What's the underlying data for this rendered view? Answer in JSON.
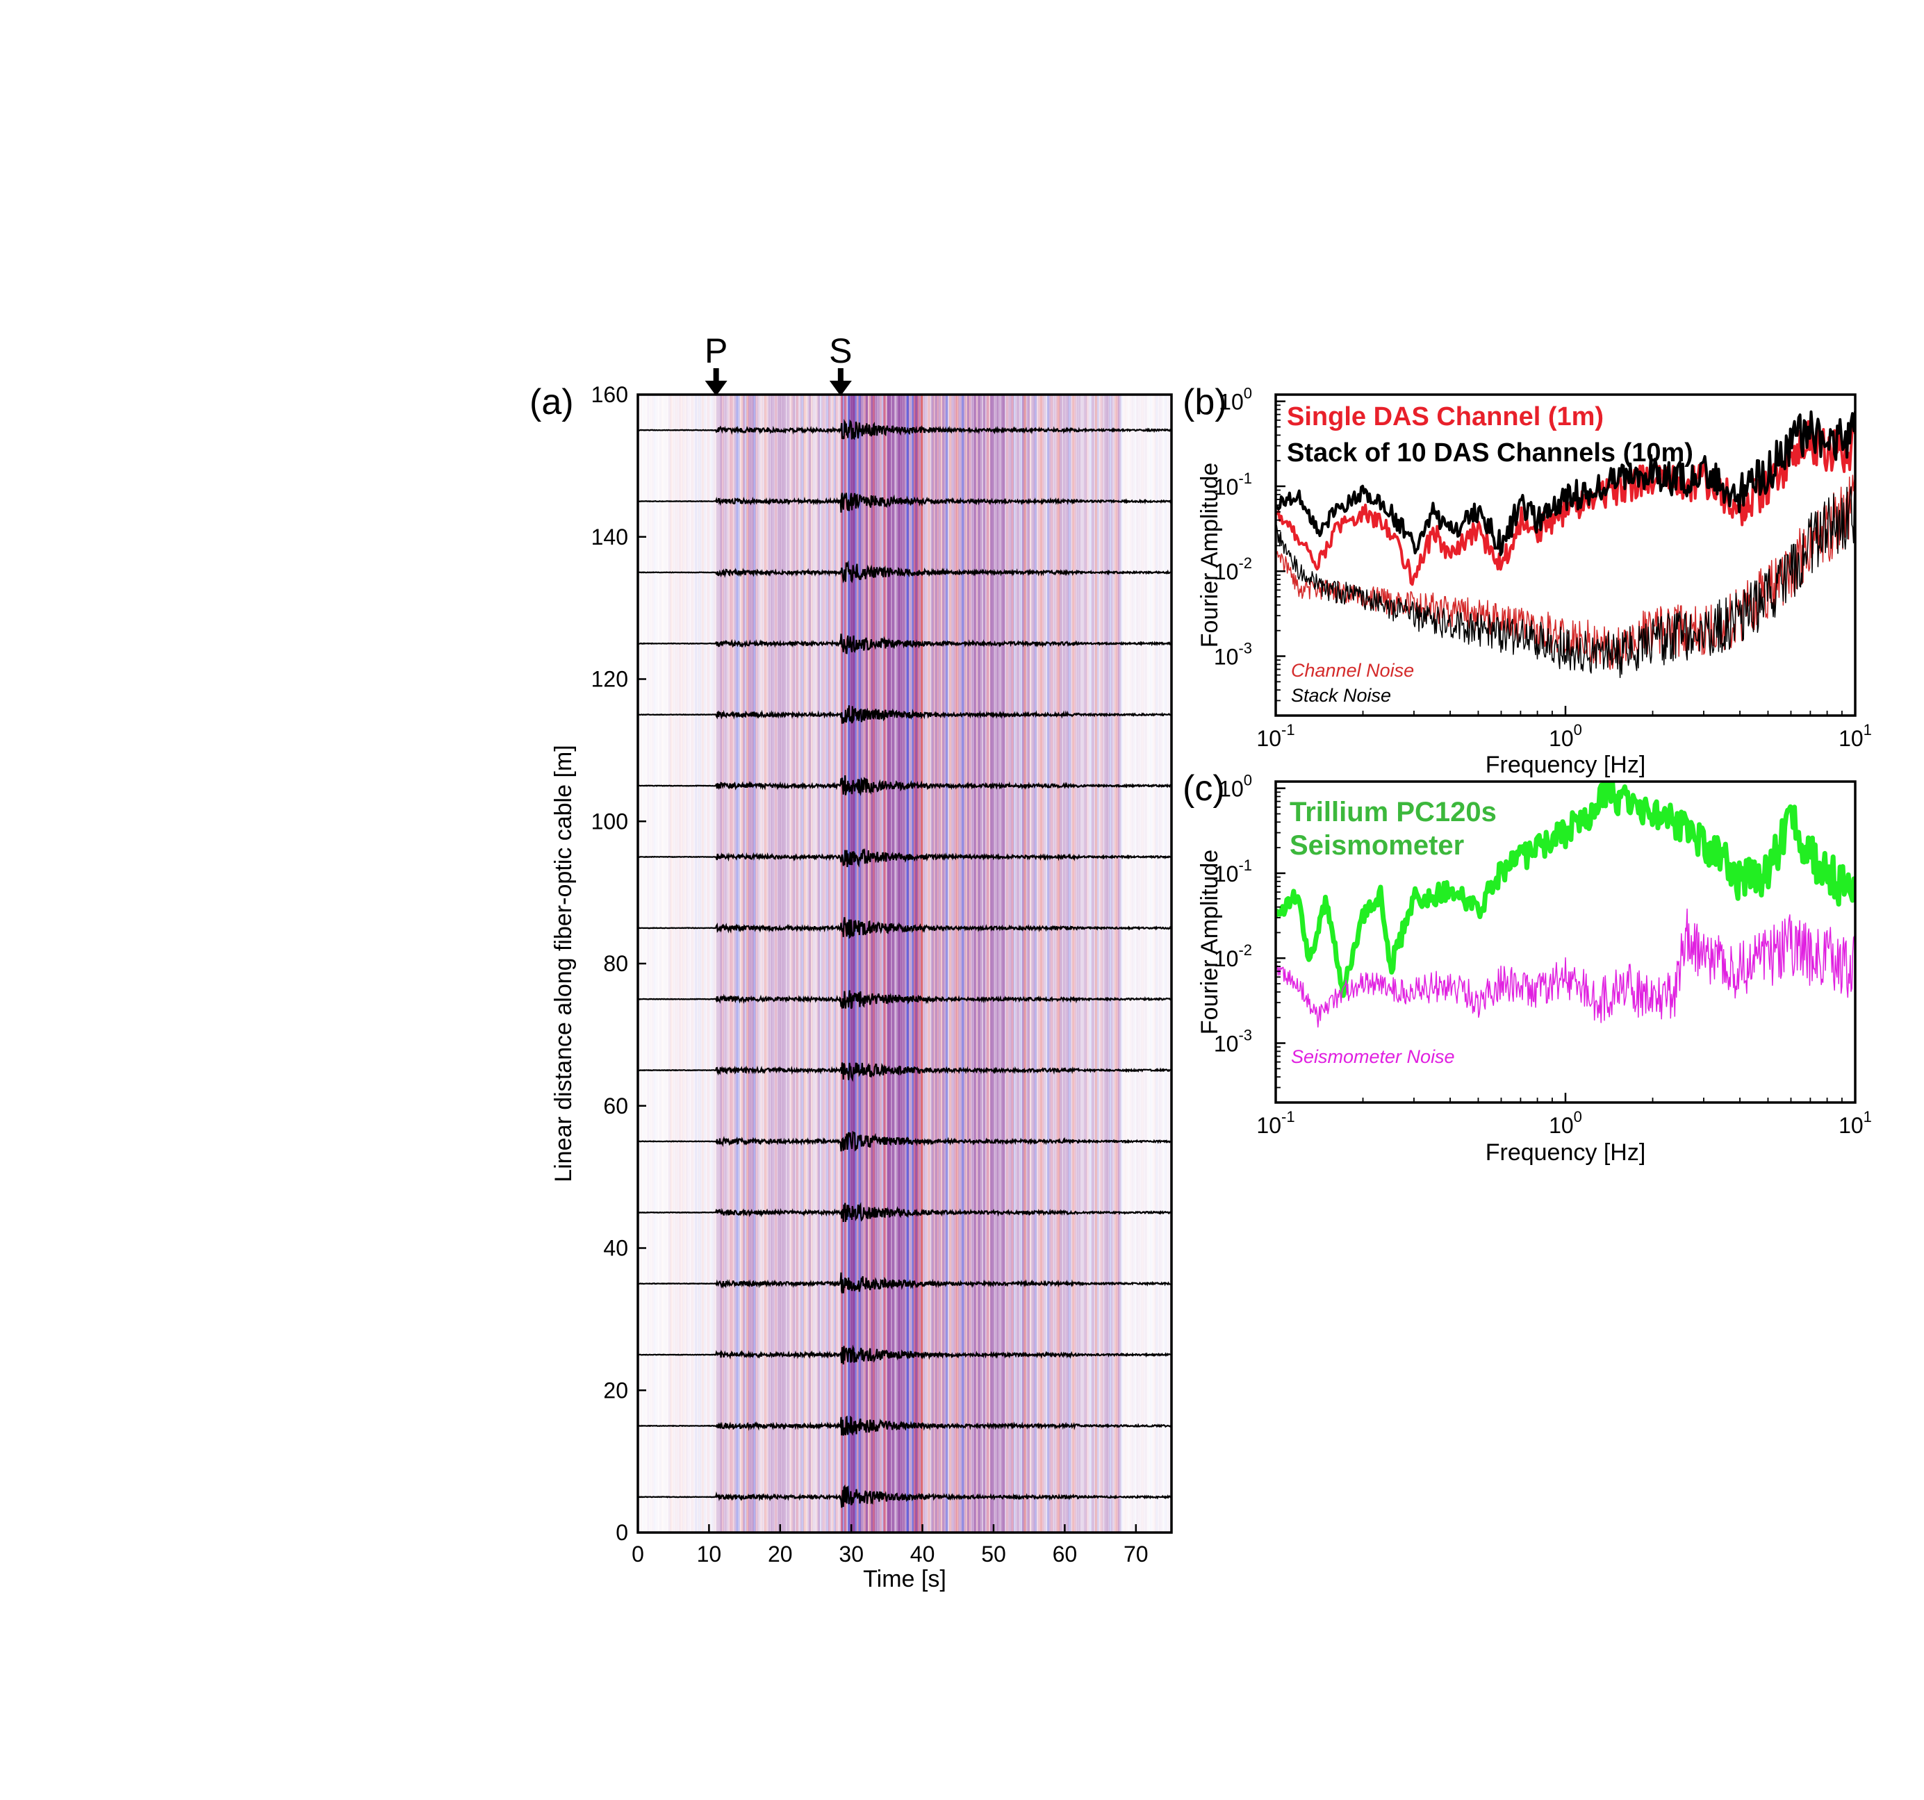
{
  "figure": {
    "panels": [
      {
        "id": "a",
        "panel_label": "(a)",
        "arrivals": [
          {
            "label": "P",
            "time": 11
          },
          {
            "label": "S",
            "time": 28.5
          }
        ]
      },
      {
        "id": "b",
        "panel_label": "(b)",
        "legend": [
          {
            "text": "Single DAS Channel (1m)",
            "color": "#e8202a"
          },
          {
            "text": "Stack of 10 DAS Channels (10m)",
            "color": "#000000"
          }
        ],
        "noise_labels": [
          {
            "text": "Channel Noise",
            "color": "#d42a2a"
          },
          {
            "text": "Stack Noise",
            "color": "#000000"
          }
        ]
      },
      {
        "id": "c",
        "panel_label": "(c)",
        "legend": [
          {
            "text": "Trillium PC120s",
            "color": "#3cb83c"
          },
          {
            "text": "Seismometer",
            "color": "#3cb83c"
          }
        ],
        "noise_labels": [
          {
            "text": "Seismometer Noise",
            "color": "#e020e0"
          }
        ]
      }
    ]
  },
  "chart_data": [
    {
      "id": "a",
      "type": "heatmap",
      "xlabel": "Time [s]",
      "ylabel": "Linear distance along fiber-optic cable [m]",
      "xlim": [
        0,
        75
      ],
      "ylim": [
        0,
        160
      ],
      "xticks": [
        0,
        10,
        20,
        30,
        40,
        50,
        60,
        70
      ],
      "yticks": [
        0,
        20,
        40,
        60,
        80,
        100,
        120,
        140,
        160
      ],
      "trace_offsets": [
        5,
        15,
        25,
        35,
        45,
        55,
        65,
        75,
        85,
        95,
        105,
        115,
        125,
        135,
        145,
        155
      ],
      "colormap": [
        "#0000ff",
        "#ffffff",
        "#ff0000"
      ],
      "trace_color": "#000000"
    },
    {
      "id": "b",
      "type": "line",
      "xlabel": "Frequency [Hz]",
      "ylabel": "Fourier Amplitude",
      "xscale": "log",
      "yscale": "log",
      "xlim": [
        0.1,
        10
      ],
      "ylim": [
        0.0002,
        1.2
      ],
      "xticks": [
        {
          "value": 0.1,
          "base": "10",
          "exp": "-1"
        },
        {
          "value": 1,
          "base": "10",
          "exp": "0"
        },
        {
          "value": 10,
          "base": "10",
          "exp": "1"
        }
      ],
      "yticks": [
        {
          "value": 0.001,
          "base": "10",
          "exp": "-3"
        },
        {
          "value": 0.01,
          "base": "10",
          "exp": "-2"
        },
        {
          "value": 0.1,
          "base": "10",
          "exp": "-1"
        },
        {
          "value": 1,
          "base": "10",
          "exp": "0"
        }
      ],
      "series": [
        {
          "name": "Single DAS Channel (1m)",
          "color": "#e8202a",
          "width": 4,
          "x": [
            0.1,
            0.12,
            0.14,
            0.16,
            0.2,
            0.25,
            0.3,
            0.35,
            0.4,
            0.5,
            0.6,
            0.7,
            0.8,
            1.0,
            1.3,
            1.6,
            2.0,
            2.5,
            3.0,
            3.5,
            4.0,
            5.0,
            6.0,
            7.0,
            8.0,
            10.0
          ],
          "y": [
            0.05,
            0.025,
            0.012,
            0.03,
            0.05,
            0.03,
            0.008,
            0.03,
            0.015,
            0.03,
            0.012,
            0.04,
            0.03,
            0.05,
            0.08,
            0.1,
            0.12,
            0.1,
            0.12,
            0.08,
            0.05,
            0.1,
            0.2,
            0.35,
            0.25,
            0.3
          ]
        },
        {
          "name": "Stack of 10 DAS Channels (10m)",
          "color": "#000000",
          "width": 4,
          "x": [
            0.1,
            0.12,
            0.14,
            0.16,
            0.2,
            0.25,
            0.3,
            0.35,
            0.4,
            0.5,
            0.6,
            0.7,
            0.8,
            1.0,
            1.3,
            1.6,
            2.0,
            2.5,
            3.0,
            3.5,
            4.0,
            5.0,
            6.0,
            7.0,
            8.0,
            10.0
          ],
          "y": [
            0.06,
            0.08,
            0.03,
            0.05,
            0.08,
            0.05,
            0.02,
            0.05,
            0.03,
            0.05,
            0.02,
            0.06,
            0.04,
            0.07,
            0.1,
            0.12,
            0.15,
            0.12,
            0.15,
            0.1,
            0.08,
            0.15,
            0.3,
            0.5,
            0.35,
            0.4
          ]
        },
        {
          "name": "Channel Noise",
          "color": "#d42a2a",
          "width": 1.5,
          "x": [
            0.1,
            0.12,
            0.15,
            0.2,
            0.3,
            0.5,
            0.8,
            1.0,
            1.5,
            2.0,
            3.0,
            4.0,
            5.0,
            6.0,
            7.0,
            8.0,
            10.0
          ],
          "y": [
            0.02,
            0.006,
            0.006,
            0.005,
            0.004,
            0.003,
            0.002,
            0.0018,
            0.0012,
            0.002,
            0.002,
            0.003,
            0.006,
            0.01,
            0.02,
            0.03,
            0.06
          ]
        },
        {
          "name": "Stack Noise",
          "color": "#000000",
          "width": 1.5,
          "x": [
            0.1,
            0.12,
            0.15,
            0.2,
            0.3,
            0.5,
            0.8,
            1.0,
            1.5,
            2.0,
            3.0,
            4.0,
            5.0,
            6.0,
            7.0,
            8.0,
            10.0
          ],
          "y": [
            0.03,
            0.01,
            0.006,
            0.005,
            0.003,
            0.002,
            0.0015,
            0.0012,
            0.001,
            0.0015,
            0.0018,
            0.003,
            0.005,
            0.01,
            0.02,
            0.03,
            0.05
          ]
        }
      ]
    },
    {
      "id": "c",
      "type": "line",
      "xlabel": "Frequency [Hz]",
      "ylabel": "Fourier Amplitude",
      "xscale": "log",
      "yscale": "log",
      "xlim": [
        0.1,
        10
      ],
      "ylim": [
        0.0002,
        1.2
      ],
      "xticks": [
        {
          "value": 0.1,
          "base": "10",
          "exp": "-1"
        },
        {
          "value": 1,
          "base": "10",
          "exp": "0"
        },
        {
          "value": 10,
          "base": "10",
          "exp": "1"
        }
      ],
      "yticks": [
        {
          "value": 0.001,
          "base": "10",
          "exp": "-3"
        },
        {
          "value": 0.01,
          "base": "10",
          "exp": "-2"
        },
        {
          "value": 0.1,
          "base": "10",
          "exp": "-1"
        },
        {
          "value": 1,
          "base": "10",
          "exp": "0"
        }
      ],
      "series": [
        {
          "name": "Trillium PC120s Seismometer",
          "color": "#22ee22",
          "width": 7,
          "x": [
            0.1,
            0.12,
            0.13,
            0.15,
            0.17,
            0.2,
            0.23,
            0.25,
            0.3,
            0.4,
            0.5,
            0.6,
            0.7,
            0.8,
            1.0,
            1.2,
            1.4,
            1.7,
            2.0,
            2.5,
            3.0,
            3.5,
            4.0,
            5.0,
            6.0,
            7.0,
            8.0,
            10.0
          ],
          "y": [
            0.03,
            0.06,
            0.008,
            0.05,
            0.004,
            0.03,
            0.06,
            0.008,
            0.05,
            0.06,
            0.04,
            0.1,
            0.15,
            0.2,
            0.3,
            0.5,
            0.9,
            0.6,
            0.5,
            0.4,
            0.2,
            0.15,
            0.08,
            0.1,
            0.4,
            0.15,
            0.1,
            0.06
          ]
        },
        {
          "name": "Seismometer Noise",
          "color": "#e020e0",
          "width": 1.5,
          "x": [
            0.1,
            0.12,
            0.14,
            0.17,
            0.2,
            0.3,
            0.4,
            0.5,
            0.6,
            0.8,
            1.0,
            1.3,
            1.6,
            2.0,
            2.4,
            2.6,
            3.0,
            4.0,
            5.0,
            6.0,
            7.0,
            8.0,
            10.0
          ],
          "y": [
            0.007,
            0.005,
            0.002,
            0.004,
            0.005,
            0.004,
            0.005,
            0.003,
            0.005,
            0.004,
            0.006,
            0.003,
            0.005,
            0.003,
            0.004,
            0.02,
            0.01,
            0.007,
            0.01,
            0.015,
            0.01,
            0.01,
            0.008
          ]
        }
      ]
    }
  ]
}
